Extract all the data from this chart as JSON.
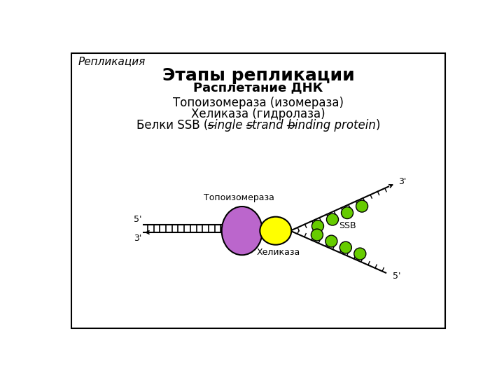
{
  "title": "Этапы репликации",
  "subtitle": "Расплетание ДНК",
  "slide_label": "Репликация",
  "line1": "Топоизомераза (изомераза)",
  "line2": "Хеликаза (гидролаза)",
  "topo_label": "Топоизомераза",
  "helicase_label": "Хеликаза",
  "ssb_label": "SSB",
  "label_5prime_top": "5'",
  "label_3prime_bottom": "3'",
  "label_3prime_top": "3'",
  "label_5prime_bottom": "5'",
  "bg_color": "#ffffff",
  "border_color": "#000000",
  "topo_color": "#bb66cc",
  "helicase_color": "#ffff00",
  "ssb_color": "#66cc00",
  "title_fontsize": 18,
  "subtitle_fontsize": 13,
  "body_fontsize": 12,
  "label_fontsize": 9
}
